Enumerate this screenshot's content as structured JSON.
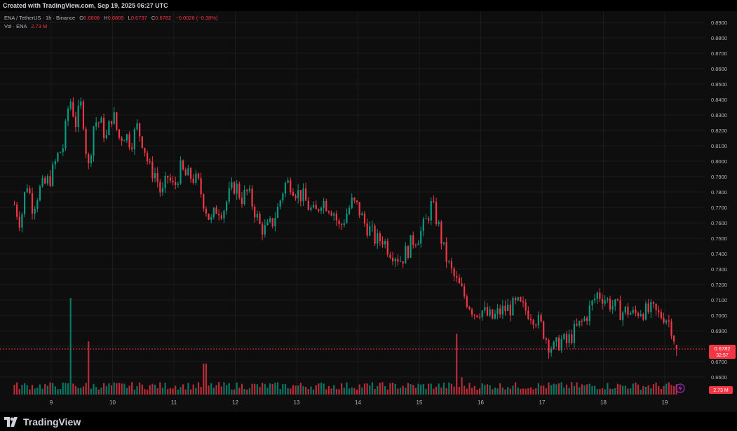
{
  "header": {
    "created_text": "Created with TradingView.com, Sep 19, 2025 06:27 UTC"
  },
  "legend": {
    "symbol": "ENA / TetherUS · 1h · Binance",
    "open_label": "O",
    "open": "0.6808",
    "high_label": "H",
    "high": "0.6809",
    "low_label": "L",
    "low": "0.6737",
    "close_label": "C",
    "close": "0.6782",
    "change": "−0.0026 (−0.38%)",
    "volume_label": "Vol · ENA",
    "volume": "2.73 M"
  },
  "branding": {
    "logo_text": "TradingView"
  },
  "colors": {
    "up": "#089981",
    "down": "#f23645",
    "background": "#0e0e0e",
    "grid": "#1c1c1c",
    "text": "#b2b5be",
    "current_price": "#f23645",
    "volume_badge": "#f23645",
    "lightning": "#9c27b0"
  },
  "chart_data": {
    "type": "candlestick",
    "timeframe": "1h",
    "y_axis": {
      "ylim": [
        0.665,
        0.895
      ],
      "ticks": [
        0.89,
        0.88,
        0.87,
        0.86,
        0.85,
        0.84,
        0.83,
        0.82,
        0.81,
        0.8,
        0.79,
        0.78,
        0.77,
        0.76,
        0.75,
        0.74,
        0.73,
        0.72,
        0.71,
        0.7,
        0.69,
        0.68,
        0.67,
        0.66
      ],
      "tick_labels": [
        "0.8900",
        "0.8800",
        "0.8700",
        "0.8600",
        "0.8500",
        "0.8400",
        "0.8300",
        "0.8200",
        "0.8100",
        "0.8000",
        "0.7900",
        "0.7800",
        "0.7700",
        "0.7600",
        "0.7500",
        "0.7400",
        "0.7300",
        "0.7200",
        "0.7100",
        "0.7000",
        "0.6900",
        "",
        "0.6700",
        "0.6600"
      ]
    },
    "x_axis": {
      "ticks": [
        9,
        10,
        11,
        12,
        13,
        14,
        15,
        16,
        17,
        18,
        19
      ],
      "tick_labels": [
        "9",
        "10",
        "11",
        "12",
        "13",
        "14",
        "15",
        "16",
        "17",
        "18",
        "19"
      ]
    },
    "current_price": {
      "value": 0.6782,
      "label": "0.6782",
      "countdown": "32:57"
    },
    "current_volume": {
      "label": "2.73 M"
    },
    "price_path": [
      [
        8.4,
        0.772
      ],
      [
        8.5,
        0.76
      ],
      [
        8.6,
        0.787
      ],
      [
        8.7,
        0.77
      ],
      [
        8.8,
        0.781
      ],
      [
        8.9,
        0.785
      ],
      [
        9.0,
        0.79
      ],
      [
        9.1,
        0.803
      ],
      [
        9.2,
        0.81
      ],
      [
        9.3,
        0.842
      ],
      [
        9.4,
        0.825
      ],
      [
        9.5,
        0.838
      ],
      [
        9.6,
        0.793
      ],
      [
        9.7,
        0.826
      ],
      [
        9.8,
        0.825
      ],
      [
        9.9,
        0.815
      ],
      [
        10.0,
        0.832
      ],
      [
        10.1,
        0.815
      ],
      [
        10.2,
        0.818
      ],
      [
        10.3,
        0.812
      ],
      [
        10.4,
        0.822
      ],
      [
        10.5,
        0.812
      ],
      [
        10.6,
        0.795
      ],
      [
        10.7,
        0.792
      ],
      [
        10.8,
        0.777
      ],
      [
        10.9,
        0.79
      ],
      [
        11.0,
        0.782
      ],
      [
        11.1,
        0.795
      ],
      [
        11.2,
        0.79
      ],
      [
        11.3,
        0.79
      ],
      [
        11.4,
        0.785
      ],
      [
        11.5,
        0.772
      ],
      [
        11.6,
        0.76
      ],
      [
        11.7,
        0.77
      ],
      [
        11.8,
        0.768
      ],
      [
        11.9,
        0.778
      ],
      [
        12.0,
        0.785
      ],
      [
        12.1,
        0.776
      ],
      [
        12.2,
        0.78
      ],
      [
        12.3,
        0.77
      ],
      [
        12.4,
        0.758
      ],
      [
        12.5,
        0.755
      ],
      [
        12.6,
        0.76
      ],
      [
        12.7,
        0.77
      ],
      [
        12.8,
        0.785
      ],
      [
        12.9,
        0.786
      ],
      [
        13.0,
        0.78
      ],
      [
        13.1,
        0.777
      ],
      [
        13.2,
        0.77
      ],
      [
        13.3,
        0.765
      ],
      [
        13.4,
        0.775
      ],
      [
        13.5,
        0.772
      ],
      [
        13.6,
        0.768
      ],
      [
        13.7,
        0.756
      ],
      [
        13.8,
        0.765
      ],
      [
        13.9,
        0.773
      ],
      [
        14.0,
        0.77
      ],
      [
        14.1,
        0.76
      ],
      [
        14.2,
        0.755
      ],
      [
        14.3,
        0.748
      ],
      [
        14.4,
        0.75
      ],
      [
        14.5,
        0.743
      ],
      [
        14.6,
        0.74
      ],
      [
        14.7,
        0.736
      ],
      [
        14.8,
        0.742
      ],
      [
        14.9,
        0.749
      ],
      [
        15.0,
        0.752
      ],
      [
        15.1,
        0.76
      ],
      [
        15.2,
        0.772
      ],
      [
        15.3,
        0.76
      ],
      [
        15.4,
        0.742
      ],
      [
        15.5,
        0.73
      ],
      [
        15.6,
        0.722
      ],
      [
        15.7,
        0.715
      ],
      [
        15.8,
        0.708
      ],
      [
        15.9,
        0.702
      ],
      [
        16.0,
        0.704
      ],
      [
        16.1,
        0.7
      ],
      [
        16.2,
        0.698
      ],
      [
        16.3,
        0.702
      ],
      [
        16.4,
        0.704
      ],
      [
        16.5,
        0.705
      ],
      [
        16.6,
        0.707
      ],
      [
        16.7,
        0.704
      ],
      [
        16.8,
        0.702
      ],
      [
        16.9,
        0.698
      ],
      [
        17.0,
        0.692
      ],
      [
        17.1,
        0.682
      ],
      [
        17.2,
        0.678
      ],
      [
        17.3,
        0.684
      ],
      [
        17.4,
        0.682
      ],
      [
        17.5,
        0.688
      ],
      [
        17.6,
        0.693
      ],
      [
        17.7,
        0.698
      ],
      [
        17.8,
        0.706
      ],
      [
        17.9,
        0.714
      ],
      [
        18.0,
        0.712
      ],
      [
        18.1,
        0.708
      ],
      [
        18.2,
        0.705
      ],
      [
        18.3,
        0.702
      ],
      [
        18.4,
        0.703
      ],
      [
        18.5,
        0.7
      ],
      [
        18.6,
        0.704
      ],
      [
        18.7,
        0.702
      ],
      [
        18.8,
        0.703
      ],
      [
        18.9,
        0.7
      ],
      [
        19.0,
        0.7
      ],
      [
        19.1,
        0.694
      ],
      [
        19.2,
        0.678
      ]
    ],
    "volume_spikes": [
      [
        9.3,
        1.0
      ],
      [
        9.6,
        0.55
      ],
      [
        11.5,
        0.32
      ],
      [
        15.6,
        0.63
      ],
      [
        15.7,
        0.18
      ]
    ]
  }
}
